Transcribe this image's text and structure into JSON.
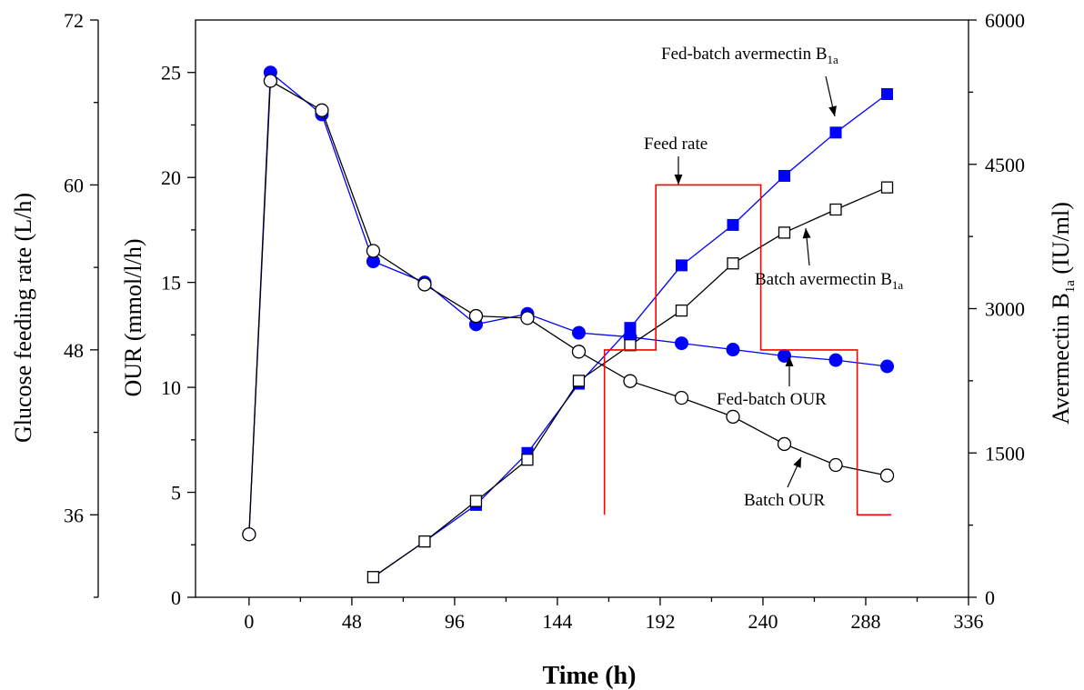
{
  "chart_data": {
    "type": "line",
    "title": "",
    "xlabel": "Time (h)",
    "xlim": [
      -25,
      336
    ],
    "xticks": [
      0,
      48,
      96,
      144,
      192,
      240,
      288,
      336
    ],
    "axes": {
      "glucose": {
        "label": "Glucose feeding rate (L/h)",
        "range": [
          30,
          72
        ],
        "ticks": [
          36,
          48,
          60,
          72
        ]
      },
      "our": {
        "label": "OUR (mmol/l/h)",
        "range": [
          0,
          27.5
        ],
        "ticks": [
          0,
          5,
          10,
          15,
          20,
          25
        ]
      },
      "avermectin": {
        "label_main": "Avermectin B",
        "label_sub": "1a",
        "label_unit": " (IU/ml)",
        "range": [
          0,
          6000
        ],
        "ticks": [
          0,
          1500,
          3000,
          4500,
          6000
        ]
      }
    },
    "series": [
      {
        "name": "Fed-batch OUR",
        "axis": "our",
        "color": "#0000ff",
        "marker": "filled-circle",
        "x": [
          0,
          10,
          34,
          58,
          82,
          106,
          130,
          154,
          178,
          202,
          226,
          250,
          274,
          298
        ],
        "y": [
          3.0,
          25.0,
          23.0,
          16.0,
          15.0,
          13.0,
          13.5,
          12.6,
          12.4,
          12.1,
          11.8,
          11.5,
          11.3,
          11.0
        ]
      },
      {
        "name": "Batch OUR",
        "axis": "our",
        "color": "#000000",
        "marker": "open-circle",
        "x": [
          0,
          10,
          34,
          58,
          82,
          106,
          130,
          154,
          178,
          202,
          226,
          250,
          274,
          298
        ],
        "y": [
          3.0,
          24.6,
          23.2,
          16.5,
          14.9,
          13.4,
          13.3,
          11.7,
          10.3,
          9.5,
          8.6,
          7.3,
          6.3,
          5.8
        ]
      },
      {
        "name": "Fed-batch avermectin B1a",
        "axis": "avermectin",
        "color": "#0000ff",
        "marker": "filled-square",
        "x": [
          58,
          82,
          106,
          130,
          154,
          178,
          202,
          226,
          250,
          274,
          298
        ],
        "y": [
          210,
          580,
          960,
          1500,
          2220,
          2800,
          3450,
          3870,
          4380,
          4830,
          5230
        ]
      },
      {
        "name": "Batch avermectin B1a",
        "axis": "avermectin",
        "color": "#000000",
        "marker": "open-square",
        "x": [
          58,
          82,
          106,
          130,
          154,
          178,
          202,
          226,
          250,
          274,
          298
        ],
        "y": [
          210,
          580,
          1000,
          1430,
          2250,
          2620,
          2980,
          3470,
          3790,
          4030,
          4260
        ]
      },
      {
        "name": "Feed rate",
        "axis": "glucose",
        "color": "#ff0000",
        "marker": "step",
        "x": [
          166,
          166,
          190,
          190,
          239,
          239,
          284,
          284,
          300
        ],
        "y": [
          36,
          48,
          48,
          60,
          60,
          48,
          48,
          36,
          36
        ]
      }
    ],
    "annotations": {
      "fedbatch_aver": {
        "main": "Fed-batch avermectin B",
        "sub": "1a"
      },
      "feed_rate": "Feed rate",
      "batch_aver": {
        "main": "Batch avermectin B",
        "sub": "1a"
      },
      "fedbatch_our": "Fed-batch OUR",
      "batch_our": "Batch OUR"
    }
  }
}
